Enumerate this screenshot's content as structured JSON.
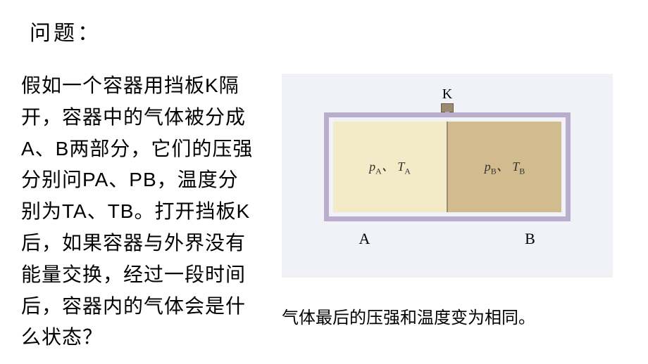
{
  "title": "问题：",
  "body": "假如一个容器用挡板K隔开，容器中的气体被分成A、B两部分，它们的压强分别问PA、PB，温度分别为TA、TB。打开挡板K后，如果容器与外界没有能量交换，经过一段时间后，容器内的气体会是什么状态？",
  "diagram": {
    "frame_color": "#b9aecc",
    "chamber_a_bg": "#f3eac7",
    "chamber_b_bg": "#d3bb90",
    "divider_color": "#9c8a74",
    "handle_color": "#9a8a72",
    "bg_color": "#f1f2f8",
    "k_label": "K",
    "chamber_a_label_p": "p",
    "chamber_a_label_p_sub": "A",
    "chamber_a_label_t": "T",
    "chamber_a_label_t_sub": "A",
    "chamber_b_label_p": "p",
    "chamber_b_label_p_sub": "B",
    "chamber_b_label_t": "T",
    "chamber_b_label_t_sub": "B",
    "separator": "、",
    "bottom_a": "A",
    "bottom_b": "B"
  },
  "answer": "气体最后的压强和温度变为相同。"
}
